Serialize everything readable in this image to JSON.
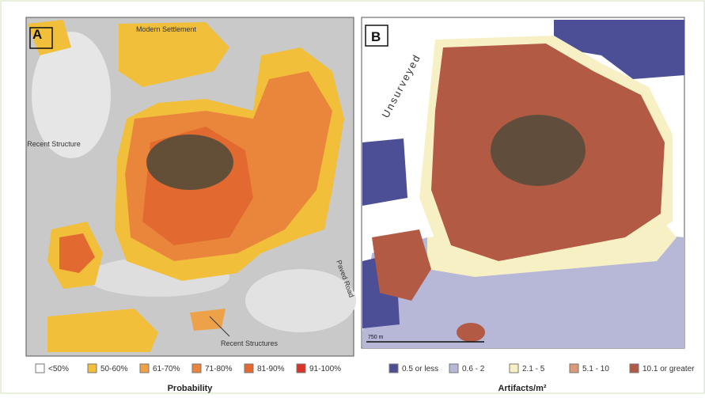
{
  "panels": [
    {
      "label": "A",
      "annotations": [
        "Modern Settlement",
        "Recent Structure",
        "Paved Road",
        "Recent Structures"
      ],
      "legend": {
        "title": "Probability",
        "items": [
          {
            "label": "<50%",
            "color": "#ffffff"
          },
          {
            "label": "50-60%",
            "color": "#f2bf3a"
          },
          {
            "label": "61-70%",
            "color": "#eda24a"
          },
          {
            "label": "71-80%",
            "color": "#e9863c"
          },
          {
            "label": "81-90%",
            "color": "#e26a30"
          },
          {
            "label": "91-100%",
            "color": "#d9332a"
          }
        ]
      }
    },
    {
      "label": "B",
      "annotations": [
        "Unsurveyed"
      ],
      "scale_bar": "750 m",
      "legend": {
        "title": "Artifacts/m²",
        "items": [
          {
            "label": "0.5 or less",
            "color": "#4d4f96"
          },
          {
            "label": "0.6 - 2",
            "color": "#b7b8d8"
          },
          {
            "label": "2.1 - 5",
            "color": "#f7f0c4"
          },
          {
            "label": "5.1 - 10",
            "color": "#dc9a78"
          },
          {
            "label": "10.1 or greater",
            "color": "#b35a45"
          }
        ]
      }
    }
  ]
}
